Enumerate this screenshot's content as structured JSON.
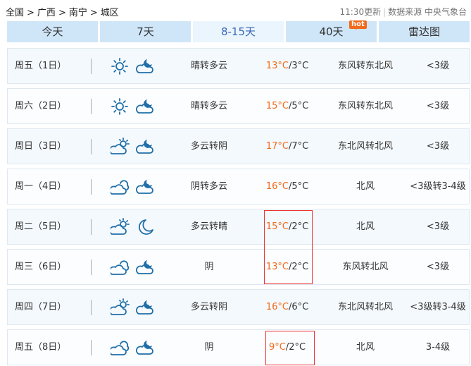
{
  "breadcrumb": [
    "全国",
    ">",
    "广西",
    ">",
    "南宁",
    ">",
    "城区"
  ],
  "source": {
    "updated": "11:30更新",
    "separator": "|",
    "text": "数据来源 中央气象台"
  },
  "tabs": [
    {
      "label": "今天"
    },
    {
      "label": "7天"
    },
    {
      "label": "8-15天",
      "active": true
    },
    {
      "label": "40天",
      "badge": "hot"
    },
    {
      "label": "雷达图"
    }
  ],
  "colors": {
    "high_temp": "#f26a1b",
    "icon": "#1f6ea8",
    "tab": "#cfe6f9",
    "active_tab_text": "#3a67b8",
    "highlight_box": "#e33333"
  },
  "forecast": [
    {
      "day": "周五（1日）",
      "icons": [
        "sun-icon",
        "cloud-moon-icon"
      ],
      "weather": "晴转多云",
      "high": "13°C",
      "low": "/3°C",
      "wind": "东风转东北风",
      "level": "<3级"
    },
    {
      "day": "周六（2日）",
      "icons": [
        "sun-icon",
        "cloud-moon-icon"
      ],
      "weather": "晴转多云",
      "high": "15°C",
      "low": "/5°C",
      "wind": "东风转东北风",
      "level": "<3级"
    },
    {
      "day": "周日（3日）",
      "icons": [
        "cloud-sun-icon",
        "cloud-moon-icon"
      ],
      "weather": "多云转阴",
      "high": "17°C",
      "low": "/7°C",
      "wind": "东北风转北风",
      "level": "<3级"
    },
    {
      "day": "周一（4日）",
      "icons": [
        "overcast-icon",
        "cloud-moon-icon"
      ],
      "weather": "阴转多云",
      "high": "16°C",
      "low": "/5°C",
      "wind": "北风",
      "level": "<3级转3-4级"
    },
    {
      "day": "周二（5日）",
      "icons": [
        "cloud-sun-icon",
        "moon-icon"
      ],
      "weather": "多云转晴",
      "high": "15°C",
      "low": "/2°C",
      "wind": "北风",
      "level": "<3级"
    },
    {
      "day": "周三（6日）",
      "icons": [
        "overcast-icon",
        "cloud-moon-icon"
      ],
      "weather": "阴",
      "high": "13°C",
      "low": "/2°C",
      "wind": "东风转北风",
      "level": "<3级"
    },
    {
      "day": "周四（7日）",
      "icons": [
        "cloud-sun-icon",
        "cloud-moon-icon"
      ],
      "weather": "多云转阴",
      "high": "16°C",
      "low": "/6°C",
      "wind": "东北风转北风",
      "level": "<3级转3-4级"
    },
    {
      "day": "周五（8日）",
      "icons": [
        "overcast-icon",
        "cloud-moon-icon"
      ],
      "weather": "阴",
      "high": "9°C",
      "low": "/2°C",
      "wind": "北风",
      "level": "3-4级"
    }
  ]
}
